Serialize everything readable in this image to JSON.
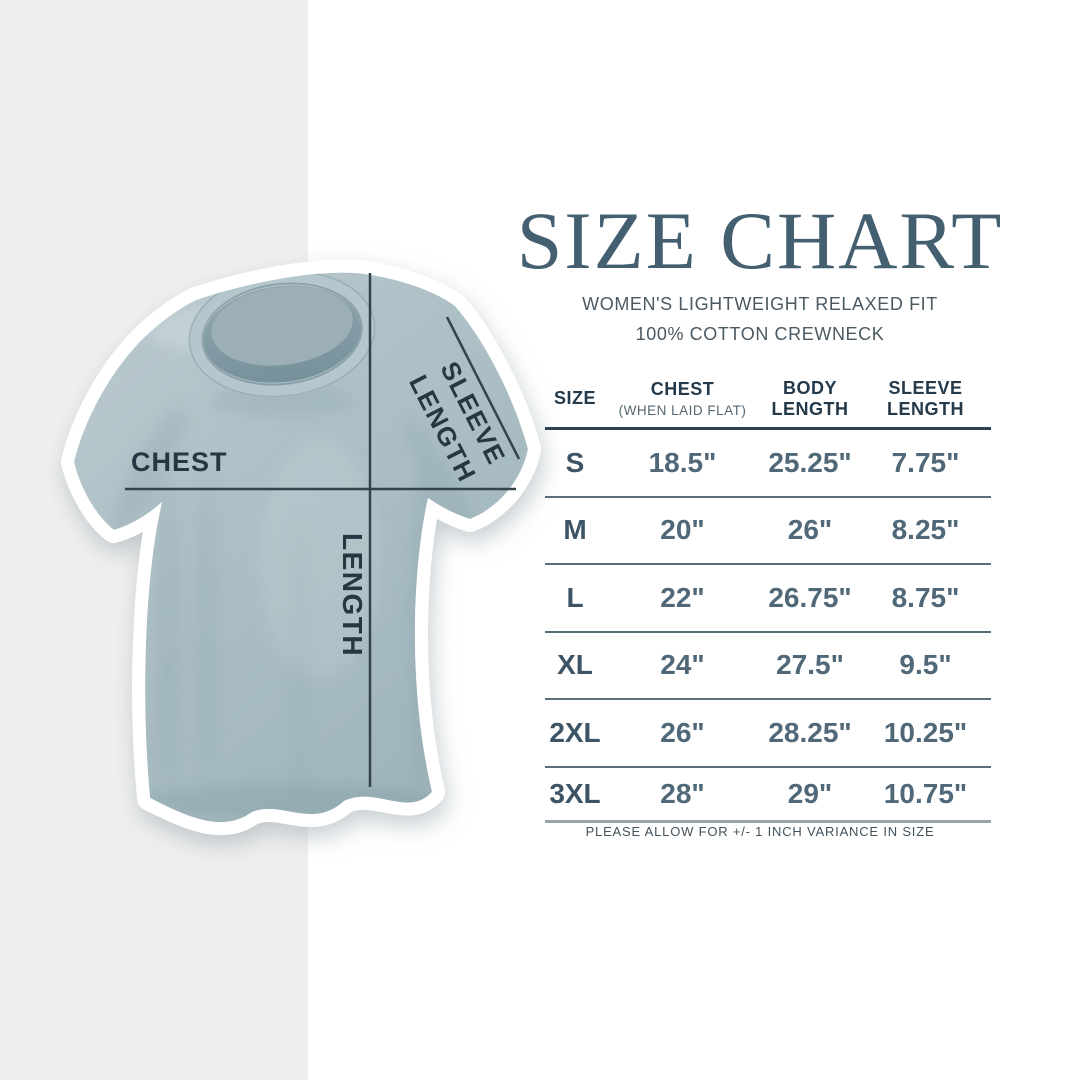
{
  "title": "SIZE CHART",
  "subtitle_line1": "WOMEN'S LIGHTWEIGHT RELAXED FIT",
  "subtitle_line2": "100% COTTON CREWNECK",
  "footer_note": "PLEASE ALLOW FOR +/- 1 INCH VARIANCE IN SIZE",
  "shirt": {
    "fabric_color": "#aec0c6",
    "annotations": {
      "chest": "CHEST",
      "length": "LENGTH",
      "sleeve_line1": "SLEEVE",
      "sleeve_line2": "LENGTH"
    }
  },
  "chart_data": {
    "type": "table",
    "title": "SIZE CHART",
    "columns": [
      "SIZE",
      "CHEST (WHEN LAID FLAT)",
      "BODY LENGTH",
      "SLEEVE LENGTH"
    ],
    "header": {
      "size": "SIZE",
      "chest": "CHEST",
      "chest_note": "(WHEN LAID FLAT)",
      "body": "BODY LENGTH",
      "sleeve": "SLEEVE LENGTH"
    },
    "rows": [
      {
        "size": "S",
        "chest": "18.5\"",
        "body": "25.25\"",
        "sleeve": "7.75\""
      },
      {
        "size": "M",
        "chest": "20\"",
        "body": "26\"",
        "sleeve": "8.25\""
      },
      {
        "size": "L",
        "chest": "22\"",
        "body": "26.75\"",
        "sleeve": "8.75\""
      },
      {
        "size": "XL",
        "chest": "24\"",
        "body": "27.5\"",
        "sleeve": "9.5\""
      },
      {
        "size": "2XL",
        "chest": "26\"",
        "body": "28.25\"",
        "sleeve": "10.25\""
      },
      {
        "size": "3XL",
        "chest": "28\"",
        "body": "29\"",
        "sleeve": "10.75\""
      }
    ]
  },
  "colors": {
    "stripe": "#efefef",
    "title": "#446070",
    "subtitle": "#4b5963",
    "header_text": "#24394a",
    "note_text": "#54666f",
    "data_text": "#506878",
    "size_text": "#3c5465",
    "header_line": "#2c4251",
    "row_line": "#5a6e79",
    "bottom_line": "#99a4a9",
    "footer": "#42525c",
    "annotation_line": "#33444d",
    "annotation_text": "#253742"
  }
}
